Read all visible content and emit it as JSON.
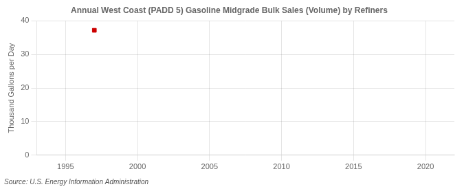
{
  "chart_data": {
    "type": "scatter",
    "title": "Annual West Coast (PADD 5) Gasoline Midgrade Bulk Sales (Volume) by Refiners",
    "ylabel": "Thousand Gallons per Day",
    "source": "Source: U.S. Energy Information Administration",
    "x": [
      1997
    ],
    "values": [
      37.2
    ],
    "color": "#cc0000",
    "marker": "square",
    "xlim": [
      1993,
      2022
    ],
    "xticks": [
      1995,
      2000,
      2005,
      2010,
      2015,
      2020
    ],
    "ylim": [
      0,
      40
    ],
    "yticks": [
      0,
      10,
      20,
      30,
      40
    ],
    "grid": true
  }
}
